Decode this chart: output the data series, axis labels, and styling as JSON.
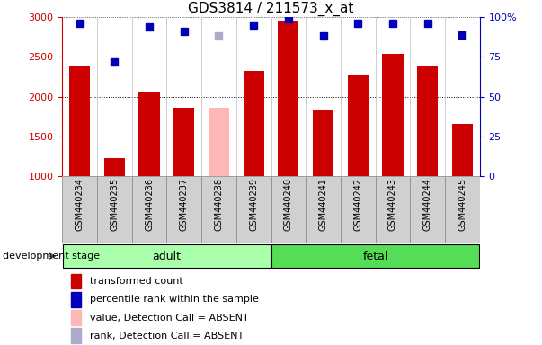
{
  "title": "GDS3814 / 211573_x_at",
  "samples": [
    "GSM440234",
    "GSM440235",
    "GSM440236",
    "GSM440237",
    "GSM440238",
    "GSM440239",
    "GSM440240",
    "GSM440241",
    "GSM440242",
    "GSM440243",
    "GSM440244",
    "GSM440245"
  ],
  "bar_values": [
    2390,
    1220,
    2060,
    1860,
    1860,
    2320,
    2960,
    1840,
    2270,
    2540,
    2380,
    1650
  ],
  "bar_colors": [
    "#cc0000",
    "#cc0000",
    "#cc0000",
    "#cc0000",
    "#ffb6b6",
    "#cc0000",
    "#cc0000",
    "#cc0000",
    "#cc0000",
    "#cc0000",
    "#cc0000",
    "#cc0000"
  ],
  "rank_values": [
    96,
    72,
    94,
    91,
    88,
    95,
    99,
    88,
    96,
    96,
    96,
    89
  ],
  "rank_colors": [
    "#0000bb",
    "#0000bb",
    "#0000bb",
    "#0000bb",
    "#aaaacc",
    "#0000bb",
    "#0000bb",
    "#0000bb",
    "#0000bb",
    "#0000bb",
    "#0000bb",
    "#0000bb"
  ],
  "groups": [
    {
      "label": "adult",
      "start": 0,
      "end": 5,
      "color": "#aaffaa"
    },
    {
      "label": "fetal",
      "start": 6,
      "end": 11,
      "color": "#55dd55"
    }
  ],
  "ylim_left": [
    1000,
    3000
  ],
  "ylim_right": [
    0,
    100
  ],
  "yticks_left": [
    1000,
    1500,
    2000,
    2500,
    3000
  ],
  "yticks_right": [
    0,
    25,
    50,
    75,
    100
  ],
  "ytick_labels_right": [
    "0",
    "25",
    "50",
    "75",
    "100%"
  ],
  "grid_values": [
    1500,
    2000,
    2500
  ],
  "bar_width": 0.6,
  "dev_stage_text": "development stage",
  "legend_items": [
    {
      "label": "transformed count",
      "color": "#cc0000"
    },
    {
      "label": "percentile rank within the sample",
      "color": "#0000bb"
    },
    {
      "label": "value, Detection Call = ABSENT",
      "color": "#ffb6b6"
    },
    {
      "label": "rank, Detection Call = ABSENT",
      "color": "#aaaacc"
    }
  ]
}
